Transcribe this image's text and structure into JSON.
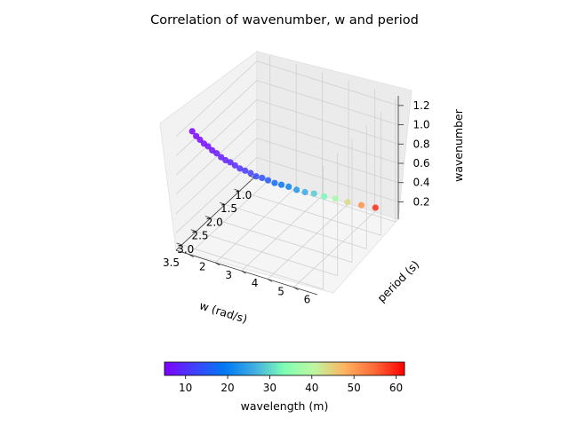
{
  "chart_data": {
    "type": "scatter",
    "projection": "3d",
    "title": "Correlation of wavenumber, w and period",
    "xlabel": "w (rad/s)",
    "ylabel": "period (s)",
    "zlabel": "wavenumber",
    "xlim": [
      0.9,
      3.7
    ],
    "ylim": [
      1.5,
      6.9
    ],
    "zlim": [
      0.02,
      1.3
    ],
    "xticks": [
      "1.0",
      "1.5",
      "2.0",
      "2.5",
      "3.0",
      "3.5"
    ],
    "yticks": [
      "2",
      "3",
      "4",
      "5",
      "6"
    ],
    "zticks": [
      "0.2",
      "0.4",
      "0.6",
      "0.8",
      "1.0",
      "1.2"
    ],
    "grid": true,
    "colorbar": {
      "label": "wavelength (m)",
      "range": [
        5,
        62
      ],
      "ticks": [
        "10",
        "20",
        "30",
        "40",
        "50",
        "60"
      ],
      "colormap": "rainbow",
      "orientation": "horizontal",
      "placement": "bottom"
    },
    "series": [
      {
        "color_by": "wavelength",
        "points": [
          {
            "w": 1.02,
            "period": 6.16,
            "wavenumber": 0.11,
            "wavelength": 59.0
          },
          {
            "w": 1.1,
            "period": 5.71,
            "wavenumber": 0.12,
            "wavelength": 51.0
          },
          {
            "w": 1.19,
            "period": 5.28,
            "wavenumber": 0.14,
            "wavelength": 43.5
          },
          {
            "w": 1.28,
            "period": 4.91,
            "wavenumber": 0.17,
            "wavelength": 37.6
          },
          {
            "w": 1.37,
            "period": 4.59,
            "wavenumber": 0.19,
            "wavelength": 32.9
          },
          {
            "w": 1.46,
            "period": 4.3,
            "wavenumber": 0.22,
            "wavelength": 28.9
          },
          {
            "w": 1.55,
            "period": 4.05,
            "wavenumber": 0.24,
            "wavelength": 25.7
          },
          {
            "w": 1.64,
            "period": 3.83,
            "wavenumber": 0.27,
            "wavelength": 22.9
          },
          {
            "w": 1.73,
            "period": 3.63,
            "wavenumber": 0.31,
            "wavelength": 20.6
          },
          {
            "w": 1.82,
            "period": 3.45,
            "wavenumber": 0.34,
            "wavelength": 18.6
          },
          {
            "w": 1.91,
            "period": 3.29,
            "wavenumber": 0.37,
            "wavelength": 16.9
          },
          {
            "w": 2.0,
            "period": 3.14,
            "wavenumber": 0.41,
            "wavelength": 15.4
          },
          {
            "w": 2.09,
            "period": 3.01,
            "wavenumber": 0.45,
            "wavelength": 14.1
          },
          {
            "w": 2.18,
            "period": 2.88,
            "wavenumber": 0.48,
            "wavelength": 13.0
          },
          {
            "w": 2.27,
            "period": 2.77,
            "wavenumber": 0.53,
            "wavelength": 11.9
          },
          {
            "w": 2.36,
            "period": 2.66,
            "wavenumber": 0.57,
            "wavelength": 11.1
          },
          {
            "w": 2.45,
            "period": 2.56,
            "wavenumber": 0.61,
            "wavelength": 10.3
          },
          {
            "w": 2.54,
            "period": 2.47,
            "wavenumber": 0.66,
            "wavelength": 9.6
          },
          {
            "w": 2.63,
            "period": 2.39,
            "wavenumber": 0.71,
            "wavelength": 8.9
          },
          {
            "w": 2.72,
            "period": 2.31,
            "wavenumber": 0.75,
            "wavelength": 8.3
          },
          {
            "w": 2.81,
            "period": 2.24,
            "wavenumber": 0.8,
            "wavelength": 7.8
          },
          {
            "w": 2.9,
            "period": 2.17,
            "wavenumber": 0.86,
            "wavelength": 7.3
          },
          {
            "w": 2.99,
            "period": 2.1,
            "wavenumber": 0.91,
            "wavelength": 6.9
          },
          {
            "w": 3.08,
            "period": 2.04,
            "wavenumber": 0.97,
            "wavelength": 6.5
          },
          {
            "w": 3.17,
            "period": 1.98,
            "wavenumber": 1.02,
            "wavelength": 6.1
          },
          {
            "w": 3.26,
            "period": 1.93,
            "wavenumber": 1.08,
            "wavelength": 5.8
          },
          {
            "w": 3.35,
            "period": 1.88,
            "wavenumber": 1.14,
            "wavelength": 5.5
          },
          {
            "w": 3.44,
            "period": 1.83,
            "wavenumber": 1.21,
            "wavelength": 5.2
          }
        ]
      }
    ]
  }
}
